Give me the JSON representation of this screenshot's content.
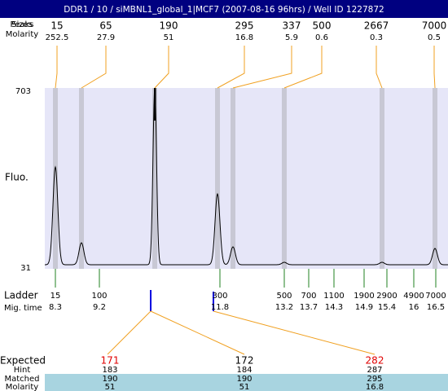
{
  "header": {
    "title": "DDR1 / 10 / siMBNL1_global_1|MCF7 (2007-08-16 96hrs) / Well ID 1227872"
  },
  "peaks": {
    "size_label": "Sizes",
    "peak_label": "Peaks",
    "molarity_label": "Molarity",
    "sizes": [
      15,
      65,
      190,
      295,
      337,
      500,
      2667,
      7000
    ],
    "molarity": [
      252.5,
      27.9,
      51,
      16.8,
      5.9,
      0.6,
      0.3,
      0.5
    ]
  },
  "plot": {
    "y_top": 703,
    "y_bottom": 31,
    "y_label": "Fluo."
  },
  "ladder": {
    "label": "Ladder",
    "time_label": "Mig. time",
    "sizes": [
      15,
      100,
      300,
      500,
      700,
      1100,
      1900,
      2900,
      4900,
      7000
    ],
    "times": [
      8.3,
      9.2,
      11.8,
      13.2,
      13.7,
      14.3,
      14.9,
      15.4,
      16,
      16.5
    ]
  },
  "table": {
    "expected_label": "Expected",
    "hint_label": "Hint",
    "matched_label": "Matched",
    "molarity_label": "Molarity",
    "expected": [
      171,
      172,
      282
    ],
    "expected_colors": [
      "#e00000",
      "#000000",
      "#e00000"
    ],
    "hint": [
      183,
      184,
      287
    ],
    "matched": [
      190,
      190,
      295
    ],
    "molarity": [
      51,
      51,
      16.8
    ]
  }
}
